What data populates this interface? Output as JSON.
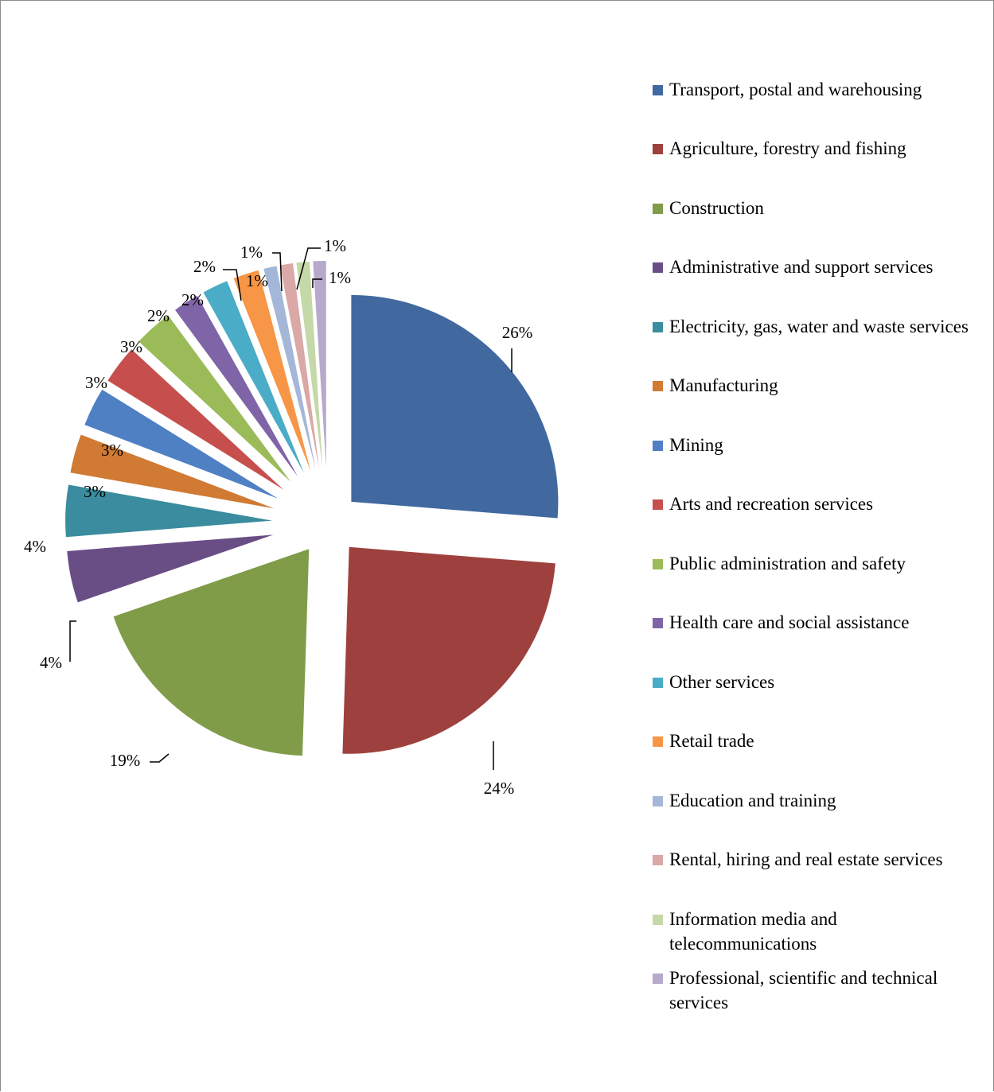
{
  "chart_data": {
    "type": "pie",
    "title": "",
    "legend_position": "right",
    "unit": "%",
    "slices": [
      {
        "label": "Transport, postal and warehousing",
        "value": 26,
        "display": "26%",
        "color": "#4169A0"
      },
      {
        "label": "Agriculture, forestry and fishing",
        "value": 24,
        "display": "24%",
        "color": "#9E413E"
      },
      {
        "label": "Construction",
        "value": 19,
        "display": "19%",
        "color": "#809C48"
      },
      {
        "label": "Administrative and support services",
        "value": 4,
        "display": "4%",
        "color": "#694E86"
      },
      {
        "label": "Electricity, gas, water and waste services",
        "value": 4,
        "display": "4%",
        "color": "#3A8C9E"
      },
      {
        "label": "Manufacturing",
        "value": 3,
        "display": "3%",
        "color": "#D07A33"
      },
      {
        "label": "Mining",
        "value": 3,
        "display": "3%",
        "color": "#4F80C4"
      },
      {
        "label": "Arts and recreation services",
        "value": 3,
        "display": "3%",
        "color": "#C64F4D"
      },
      {
        "label": "Public administration and safety",
        "value": 3,
        "display": "3%",
        "color": "#9BBB59"
      },
      {
        "label": "Health care and social assistance",
        "value": 2,
        "display": "2%",
        "color": "#8064A8"
      },
      {
        "label": "Other services",
        "value": 2,
        "display": "2%",
        "color": "#4AACC6"
      },
      {
        "label": "Retail trade",
        "value": 2,
        "display": "2%",
        "color": "#F79646"
      },
      {
        "label": "Education and training",
        "value": 1,
        "display": "1%",
        "color": "#A5B7D9"
      },
      {
        "label": "Rental, hiring and real estate services",
        "value": 1,
        "display": "1%",
        "color": "#DAA8A6"
      },
      {
        "label": "Information media and telecommunications",
        "value": 1,
        "display": "1%",
        "color": "#C5D8A7"
      },
      {
        "label": "Professional, scientific and technical services",
        "value": 1,
        "display": "1%",
        "color": "#B7A9CB"
      }
    ]
  }
}
